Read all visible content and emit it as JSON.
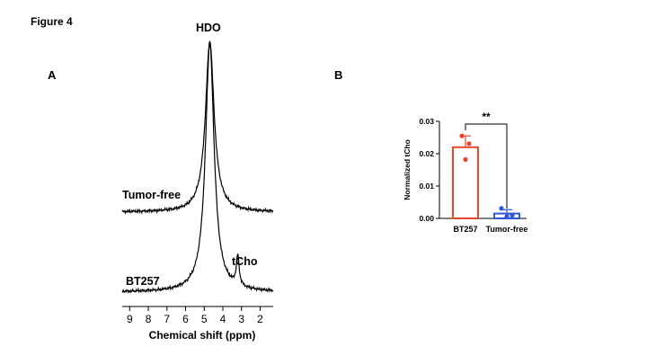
{
  "figure_label": "Figure 4",
  "panel_a": {
    "label": "A"
  },
  "panel_b": {
    "label": "B"
  },
  "chart_data": [
    {
      "type": "line",
      "panel": "A",
      "xlabel": "Chemical shift (ppm)",
      "x_ticks": [
        9,
        8,
        7,
        6,
        5,
        4,
        3,
        2
      ],
      "xlim": [
        9.4,
        1.3
      ],
      "x_reversed": true,
      "annotations": [
        "HDO",
        "tCho"
      ],
      "series": [
        {
          "name": "Tumor-free",
          "peaks": [
            {
              "ppm": 4.7,
              "relative_height": 1.0,
              "label": "HDO"
            }
          ]
        },
        {
          "name": "BT257",
          "peaks": [
            {
              "ppm": 4.7,
              "relative_height": 1.0,
              "label": "HDO"
            },
            {
              "ppm": 3.2,
              "relative_height": 0.12,
              "label": "tCho"
            }
          ]
        }
      ]
    },
    {
      "type": "bar",
      "panel": "B",
      "ylabel": "Normalized tCho",
      "ylim": [
        0,
        0.03
      ],
      "y_ticks": [
        "0.00",
        "0.01",
        "0.02",
        "0.03"
      ],
      "categories": [
        "BT257",
        "Tumor-free"
      ],
      "values": [
        0.022,
        0.0015
      ],
      "errors": [
        0.0035,
        0.0012
      ],
      "points": [
        [
          0.0255,
          0.0231,
          0.0182
        ],
        [
          0.0031,
          0.0009,
          0.0006
        ]
      ],
      "colors": [
        "#e8472e",
        "#2e56d6"
      ],
      "significance": {
        "between": [
          0,
          1
        ],
        "label": "**"
      }
    }
  ]
}
